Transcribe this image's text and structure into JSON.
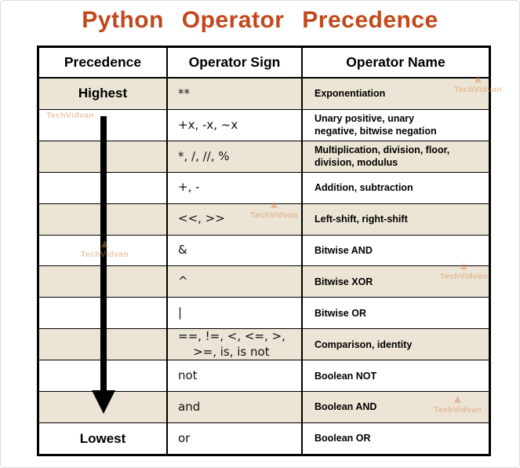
{
  "title": "Python Operator Precedence",
  "colors": {
    "title": "#c2481c",
    "row_shade": "#ece5d6",
    "table_border": "#000000",
    "watermark": "#d9864a"
  },
  "watermark": {
    "text": "TechVidvan"
  },
  "table": {
    "headers": [
      "Precedence",
      "Operator Sign",
      "Operator Name"
    ],
    "rows": [
      {
        "precedence": "Highest",
        "sign": "**",
        "name": "Exponentiation",
        "shade": true
      },
      {
        "precedence": "",
        "sign": "+x, -x, ~x",
        "name": "Unary positive, unary\nnegative, bitwise negation",
        "shade": false
      },
      {
        "precedence": "",
        "sign": "*, /, //, %",
        "name": "Multiplication, division, floor,\ndivision, modulus",
        "shade": true
      },
      {
        "precedence": "",
        "sign": "+, -",
        "name": "Addition, subtraction",
        "shade": false
      },
      {
        "precedence": "",
        "sign": "<<, >>",
        "name": "Left-shift, right-shift",
        "shade": true
      },
      {
        "precedence": "",
        "sign": "&",
        "name": "Bitwise AND",
        "shade": false
      },
      {
        "precedence": "",
        "sign": "^",
        "name": "Bitwise XOR",
        "shade": true
      },
      {
        "precedence": "",
        "sign": "|",
        "name": "Bitwise OR",
        "shade": false
      },
      {
        "precedence": "",
        "sign": "==, !=, <, <=, >,\n    >=, is, is not",
        "name": "Comparison, identity",
        "shade": true
      },
      {
        "precedence": "",
        "sign": "not",
        "name": "Boolean NOT",
        "shade": false
      },
      {
        "precedence": "",
        "sign": "and",
        "name": "Boolean AND",
        "shade": true
      },
      {
        "precedence": "Lowest",
        "sign": "or",
        "name": "Boolean OR",
        "shade": false
      }
    ]
  }
}
